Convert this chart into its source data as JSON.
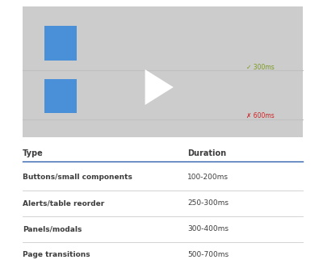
{
  "bg_color": "#ffffff",
  "video_bg": "#cccccc",
  "blue_color": "#4a90d9",
  "line_color": "#c0c0c0",
  "label_good": "✓ 300ms",
  "label_good_color": "#7a9a20",
  "label_bad": "✗ 600ms",
  "label_bad_color": "#cc2222",
  "play_color": "#ffffff",
  "header_type": "Type",
  "header_duration": "Duration",
  "header_line_color": "#2c5fab",
  "header_text_color": "#3d3d3d",
  "row_line_color": "#cccccc",
  "row_text_color": "#3d3d3d",
  "rows": [
    {
      "type": "Buttons/small components",
      "duration": "100-200ms"
    },
    {
      "type": "Alerts/table reorder",
      "duration": "250-300ms"
    },
    {
      "type": "Panels/modals",
      "duration": "300-400ms"
    },
    {
      "type": "Page transitions",
      "duration": "500-700ms"
    }
  ],
  "fig_width": 4.0,
  "fig_height": 3.32
}
